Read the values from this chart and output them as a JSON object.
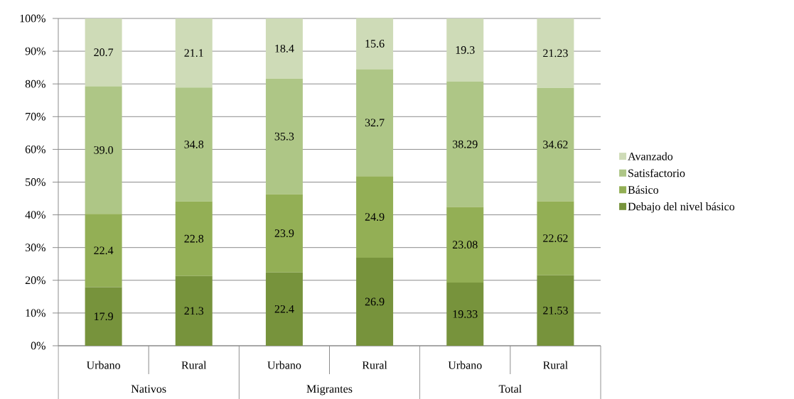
{
  "chart_data": {
    "type": "bar",
    "stacked": true,
    "categories": [
      "Urbano",
      "Rural",
      "Urbano",
      "Rural",
      "Urbano",
      "Rural"
    ],
    "series": [
      {
        "name": "Debajo del nivel básico",
        "color": "#77933c",
        "values": [
          17.9,
          21.3,
          22.4,
          26.9,
          19.33,
          21.53
        ],
        "value_labels": [
          "17.9",
          "21.3",
          "22.4",
          "26.9",
          "19.33",
          "21.53"
        ]
      },
      {
        "name": "Básico",
        "color": "#93af55",
        "values": [
          22.4,
          22.8,
          23.9,
          24.9,
          23.08,
          22.62
        ],
        "value_labels": [
          "22.4",
          "22.8",
          "23.9",
          "24.9",
          "23.08",
          "22.62"
        ]
      },
      {
        "name": "Satisfactorio",
        "color": "#aec686",
        "values": [
          39.0,
          34.8,
          35.3,
          32.7,
          38.29,
          34.62
        ],
        "value_labels": [
          "39.0",
          "34.8",
          "35.3",
          "32.7",
          "38.29",
          "34.62"
        ]
      },
      {
        "name": "Avanzado",
        "color": "#cedbb7",
        "values": [
          20.7,
          21.1,
          18.4,
          15.6,
          19.3,
          21.23
        ],
        "value_labels": [
          "20.7",
          "21.1",
          "18.4",
          "15.6",
          "19.3",
          "21.23"
        ]
      }
    ],
    "ylim": [
      0,
      100
    ],
    "yticks": [
      {
        "value": 0,
        "label": "0%"
      },
      {
        "value": 10,
        "label": "10%"
      },
      {
        "value": 20,
        "label": "20%"
      },
      {
        "value": 30,
        "label": "30%"
      },
      {
        "value": 40,
        "label": "40%"
      },
      {
        "value": 50,
        "label": "50%"
      },
      {
        "value": 60,
        "label": "60%"
      },
      {
        "value": 70,
        "label": "70%"
      },
      {
        "value": 80,
        "label": "80%"
      },
      {
        "value": 90,
        "label": "90%"
      },
      {
        "value": 100,
        "label": "100%"
      }
    ],
    "grid": "y",
    "legend": "right",
    "annotations": [
      "Nativos",
      "Migrantes",
      "Total"
    ]
  }
}
